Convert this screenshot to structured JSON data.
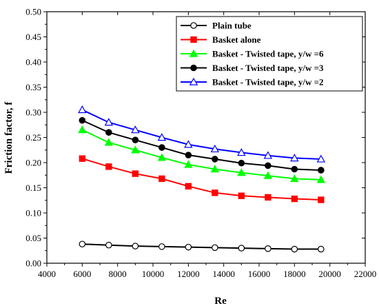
{
  "chart_data": {
    "type": "line",
    "title": "",
    "xlabel": "Re",
    "ylabel": "Friction factor, f",
    "xlim": [
      4000,
      22000
    ],
    "ylim": [
      0.0,
      0.5
    ],
    "xticks": [
      4000,
      6000,
      8000,
      10000,
      12000,
      14000,
      16000,
      18000,
      20000,
      22000
    ],
    "yticks": [
      0.0,
      0.05,
      0.1,
      0.15,
      0.2,
      0.25,
      0.3,
      0.35,
      0.4,
      0.45,
      0.5
    ],
    "xtick_labels": [
      "4000",
      "6000",
      "8000",
      "10000",
      "12000",
      "14000",
      "16000",
      "18000",
      "20000",
      "22000"
    ],
    "ytick_labels": [
      "0.00",
      "0.05",
      "0.10",
      "0.15",
      "0.20",
      "0.25",
      "0.30",
      "0.35",
      "0.40",
      "0.45",
      "0.50"
    ],
    "grid": false,
    "legend_position": "top-right",
    "x": [
      6000,
      7500,
      9000,
      10500,
      12000,
      13500,
      15000,
      16500,
      18000,
      19500
    ],
    "series": [
      {
        "name": "Plain tube",
        "color": "#000000",
        "marker": "circle-open",
        "values": [
          0.038,
          0.036,
          0.034,
          0.033,
          0.032,
          0.031,
          0.03,
          0.029,
          0.028,
          0.028
        ]
      },
      {
        "name": "Basket alone",
        "color": "#ff0000",
        "marker": "square-filled",
        "values": [
          0.208,
          0.192,
          0.178,
          0.168,
          0.153,
          0.14,
          0.134,
          0.131,
          0.128,
          0.126
        ]
      },
      {
        "name": "Basket - Twisted tape, y/w =6",
        "color": "#00ff00",
        "marker": "triangle-filled",
        "values": [
          0.265,
          0.24,
          0.225,
          0.21,
          0.196,
          0.187,
          0.18,
          0.174,
          0.168,
          0.166
        ]
      },
      {
        "name": "Basket - Twisted tape, y/w =3",
        "color": "#000000",
        "marker": "circle-filled",
        "values": [
          0.284,
          0.26,
          0.245,
          0.23,
          0.215,
          0.207,
          0.199,
          0.194,
          0.187,
          0.185
        ]
      },
      {
        "name": "Basket - Twisted tape, y/w =2",
        "color": "#0000ff",
        "marker": "triangle-open",
        "values": [
          0.305,
          0.28,
          0.265,
          0.25,
          0.236,
          0.227,
          0.22,
          0.214,
          0.209,
          0.207
        ]
      }
    ]
  }
}
